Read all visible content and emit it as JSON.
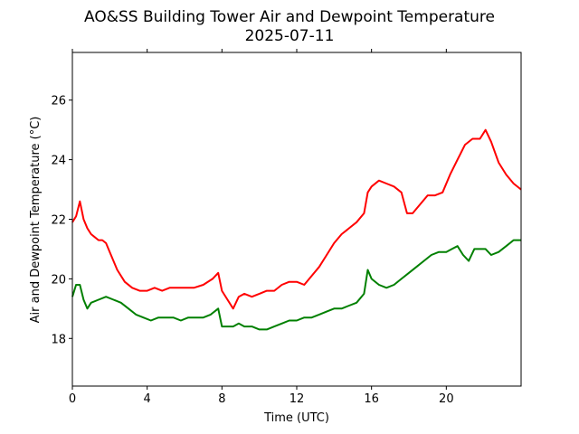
{
  "chart_data": {
    "type": "line",
    "title": "AO&SS Building Tower Air and Dewpoint Temperature",
    "subtitle": "2025-07-11",
    "xlabel": "Time (UTC)",
    "ylabel": "Air and Dewpoint Temperature (°C)",
    "xlim": [
      0,
      24
    ],
    "ylim": [
      16.4,
      27.6
    ],
    "x_ticks": [
      "0",
      "4",
      "8",
      "12",
      "16",
      "20"
    ],
    "x_tick_values": [
      0,
      4,
      8,
      12,
      16,
      20
    ],
    "y_ticks": [
      "18",
      "20",
      "22",
      "24",
      "26"
    ],
    "y_tick_values": [
      18,
      20,
      22,
      24,
      26
    ],
    "grid": false,
    "series": [
      {
        "color": "#ff0000",
        "x": [
          0,
          0.2,
          0.4,
          0.6,
          0.8,
          1.0,
          1.2,
          1.4,
          1.6,
          1.8,
          2.0,
          2.4,
          2.8,
          3.2,
          3.6,
          4.0,
          4.4,
          4.8,
          5.2,
          5.6,
          6.0,
          6.5,
          7.0,
          7.5,
          7.8,
          8.0,
          8.3,
          8.6,
          8.9,
          9.2,
          9.6,
          10.0,
          10.4,
          10.8,
          11.2,
          11.6,
          12.0,
          12.4,
          12.8,
          13.2,
          13.6,
          14.0,
          14.4,
          14.8,
          15.2,
          15.6,
          15.8,
          16.0,
          16.4,
          16.8,
          17.2,
          17.6,
          17.9,
          18.2,
          18.6,
          19.0,
          19.4,
          19.8,
          20.2,
          20.6,
          21.0,
          21.4,
          21.8,
          22.1,
          22.4,
          22.8,
          23.2,
          23.6,
          24.0
        ],
        "values": [
          21.9,
          22.1,
          22.6,
          22.0,
          21.7,
          21.5,
          21.4,
          21.3,
          21.3,
          21.2,
          20.9,
          20.3,
          19.9,
          19.7,
          19.6,
          19.6,
          19.7,
          19.6,
          19.7,
          19.7,
          19.7,
          19.7,
          19.8,
          20.0,
          20.2,
          19.6,
          19.3,
          19.0,
          19.4,
          19.5,
          19.4,
          19.5,
          19.6,
          19.6,
          19.8,
          19.9,
          19.9,
          19.8,
          20.1,
          20.4,
          20.8,
          21.2,
          21.5,
          21.7,
          21.9,
          22.2,
          22.9,
          23.1,
          23.3,
          23.2,
          23.1,
          22.9,
          22.2,
          22.2,
          22.5,
          22.8,
          22.8,
          22.9,
          23.5,
          24.0,
          24.5,
          24.7,
          24.7,
          25.0,
          24.6,
          23.9,
          23.5,
          23.2,
          23.0
        ]
      },
      {
        "color": "#008000",
        "x": [
          0,
          0.2,
          0.4,
          0.6,
          0.8,
          1.0,
          1.4,
          1.8,
          2.2,
          2.6,
          3.0,
          3.4,
          3.8,
          4.2,
          4.6,
          5.0,
          5.4,
          5.8,
          6.2,
          6.6,
          7.0,
          7.4,
          7.8,
          8.0,
          8.3,
          8.6,
          8.9,
          9.2,
          9.6,
          10.0,
          10.4,
          10.8,
          11.2,
          11.6,
          12.0,
          12.4,
          12.8,
          13.2,
          13.6,
          14.0,
          14.4,
          14.8,
          15.2,
          15.6,
          15.8,
          16.0,
          16.4,
          16.8,
          17.2,
          17.6,
          18.0,
          18.4,
          18.8,
          19.2,
          19.6,
          20.0,
          20.3,
          20.6,
          20.9,
          21.2,
          21.5,
          21.8,
          22.1,
          22.4,
          22.8,
          23.2,
          23.6,
          24.0
        ],
        "values": [
          19.4,
          19.8,
          19.8,
          19.3,
          19.0,
          19.2,
          19.3,
          19.4,
          19.3,
          19.2,
          19.0,
          18.8,
          18.7,
          18.6,
          18.7,
          18.7,
          18.7,
          18.6,
          18.7,
          18.7,
          18.7,
          18.8,
          19.0,
          18.4,
          18.4,
          18.4,
          18.5,
          18.4,
          18.4,
          18.3,
          18.3,
          18.4,
          18.5,
          18.6,
          18.6,
          18.7,
          18.7,
          18.8,
          18.9,
          19.0,
          19.0,
          19.1,
          19.2,
          19.5,
          20.3,
          20.0,
          19.8,
          19.7,
          19.8,
          20.0,
          20.2,
          20.4,
          20.6,
          20.8,
          20.9,
          20.9,
          21.0,
          21.1,
          20.8,
          20.6,
          21.0,
          21.0,
          21.0,
          20.8,
          20.9,
          21.1,
          21.3,
          21.3
        ]
      }
    ]
  }
}
